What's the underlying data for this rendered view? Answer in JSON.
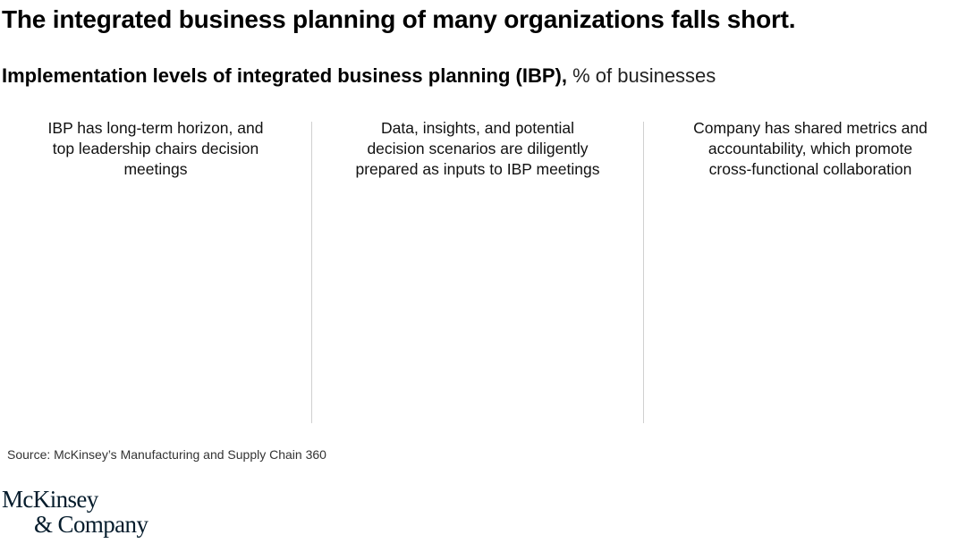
{
  "title": "The integrated business planning of many organizations falls short.",
  "subtitle": {
    "bold": "Implementation levels of integrated business planning (IBP),",
    "unit": " % of businesses"
  },
  "chart_data": {
    "type": "bar",
    "title": "Implementation levels of integrated business planning (IBP), % of businesses",
    "categories": [
      "IBP has long-term horizon, and top leadership chairs decision meetings",
      "Data, insights, and potential decision scenarios are diligently prepared as inputs to IBP meetings",
      "Company has shared metrics and accountability, which promote cross-functional collaboration"
    ],
    "series": [],
    "grid": false
  },
  "columns": [
    {
      "lines": [
        "IBP has long-term horizon, and",
        "top leadership chairs decision",
        "meetings"
      ]
    },
    {
      "lines": [
        "Data, insights, and potential",
        "decision scenarios are diligently",
        "prepared as inputs to IBP meetings"
      ]
    },
    {
      "lines": [
        "Company has shared metrics and",
        "accountability, which promote",
        "cross-functional collaboration"
      ]
    }
  ],
  "source": "Source: McKinsey’s Manufacturing and Supply Chain 360",
  "logo": {
    "line1": "McKinsey",
    "line2": "& Company",
    "color": "#051c2c"
  },
  "colors": {
    "divider": "#d0d0d0",
    "text": "#000000"
  }
}
